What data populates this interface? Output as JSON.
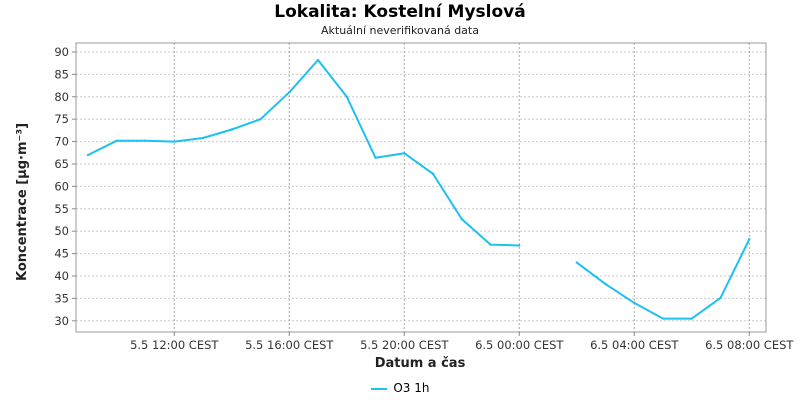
{
  "chart_data": {
    "type": "line",
    "title": "Lokalita: Kostelní Myslová",
    "subtitle": "Aktuální neverifikovaná data",
    "xlabel": "Datum a čas",
    "ylabel": "Koncentrace [µg·m⁻³]",
    "ylim": [
      27.5,
      92
    ],
    "yticks": [
      30,
      35,
      40,
      45,
      50,
      55,
      60,
      65,
      70,
      75,
      80,
      85,
      90
    ],
    "xlim_hours": [
      8.5,
      9.5
    ],
    "xticks": [
      {
        "label": "5.5 12:00 CEST"
      },
      {
        "label": "5.5 16:00 CEST"
      },
      {
        "label": "5.5 20:00 CEST"
      },
      {
        "label": "6.5 00:00 CEST"
      },
      {
        "label": "6.5 04:00 CEST"
      },
      {
        "label": "6.5 08:00 CEST"
      }
    ],
    "grid": true,
    "legend_position": "bottom-center",
    "series": [
      {
        "name": "O3 1h",
        "color": "#1ec0f0",
        "points": [
          [
            "5.5 09:00",
            67.0
          ],
          [
            "5.5 10:00",
            70.2
          ],
          [
            "5.5 11:00",
            70.2
          ],
          [
            "5.5 12:00",
            70.0
          ],
          [
            "5.5 13:00",
            70.8
          ],
          [
            "5.5 14:00",
            72.7
          ],
          [
            "5.5 15:00",
            75.0
          ],
          [
            "5.5 16:00",
            81.0
          ],
          [
            "5.5 17:00",
            88.2
          ],
          [
            "5.5 18:00",
            80.0
          ],
          [
            "5.5 19:00",
            66.4
          ],
          [
            "5.5 20:00",
            67.4
          ],
          [
            "5.5 21:00",
            62.8
          ],
          [
            "5.5 22:00",
            52.7
          ],
          [
            "5.5 23:00",
            47.0
          ],
          [
            "6.5 00:00",
            46.8
          ],
          [
            "6.5 01:00",
            null
          ],
          [
            "6.5 02:00",
            43.0
          ],
          [
            "6.5 03:00",
            38.2
          ],
          [
            "6.5 04:00",
            34.0
          ],
          [
            "6.5 05:00",
            30.5
          ],
          [
            "6.5 06:00",
            30.5
          ],
          [
            "6.5 07:00",
            35.1
          ],
          [
            "6.5 08:00",
            48.2
          ]
        ]
      }
    ]
  }
}
